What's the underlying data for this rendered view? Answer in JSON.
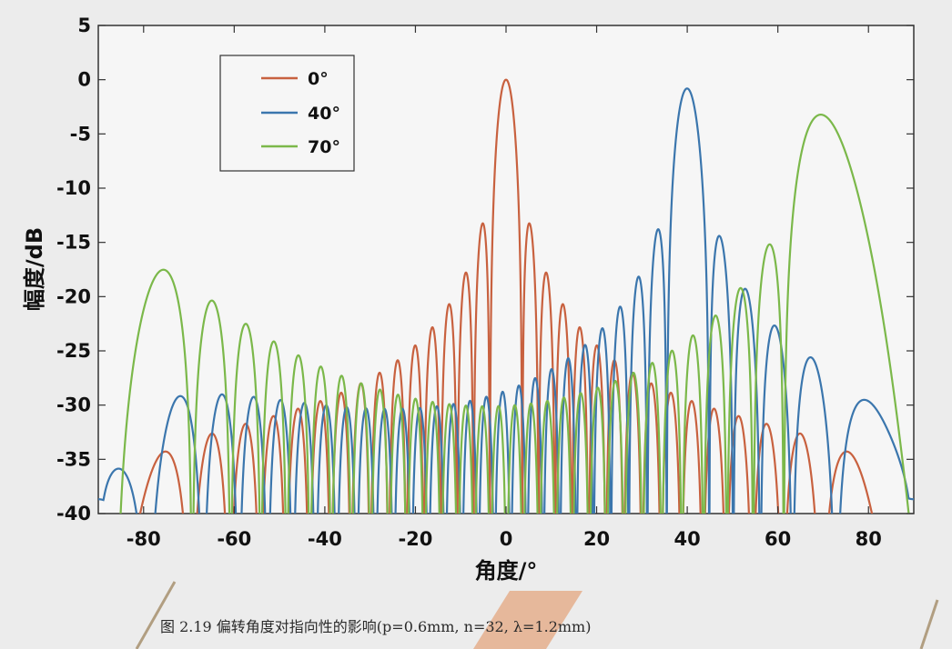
{
  "figure_caption": "图 2.19  偏转角度对指向性的影响(p=0.6mm, n=32,  λ=1.2mm)",
  "chart_data": {
    "type": "line",
    "xlabel": "角度/°",
    "ylabel": "幅度/dB",
    "xlim": [
      -90,
      90
    ],
    "ylim": [
      -40,
      5
    ],
    "x_ticks": [
      "-80",
      "-60",
      "-40",
      "-20",
      "0",
      "20",
      "40",
      "60",
      "80"
    ],
    "y_ticks": [
      "5",
      "0",
      "-5",
      "-10",
      "-15",
      "-20",
      "-25",
      "-30",
      "-35",
      "-40"
    ],
    "grid": false,
    "legend_position": "top-left",
    "array": {
      "pitch_mm": 0.6,
      "elements": 32,
      "wavelength_mm": 1.2
    },
    "series": [
      {
        "name": "0°",
        "steer_deg": 0,
        "color": "#c8613f",
        "main_lobe_x": 0,
        "main_lobe_y": 0
      },
      {
        "name": "40°",
        "steer_deg": 40,
        "color": "#3b76ad",
        "main_lobe_x": 40,
        "main_lobe_y": 0
      },
      {
        "name": "70°",
        "steer_deg": 70,
        "color": "#7bb84a",
        "main_lobe_x": 70,
        "main_lobe_y": 0
      }
    ]
  }
}
